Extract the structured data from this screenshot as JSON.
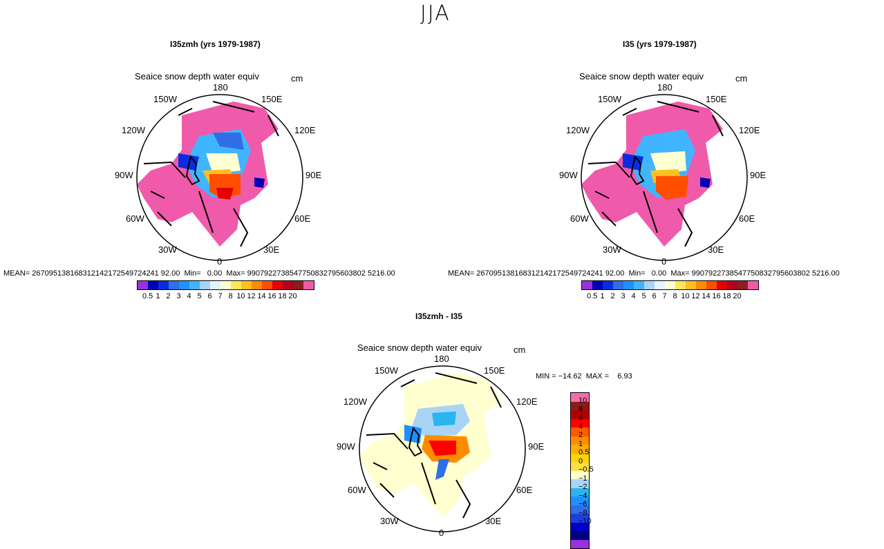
{
  "title": "JJA",
  "palette_main": [
    "#9b30e0",
    "#0000b4",
    "#0a2ce0",
    "#2f6ee6",
    "#1e90ff",
    "#41b4ff",
    "#a7d4ff",
    "#e0f5ff",
    "#ffffd4",
    "#ffe65a",
    "#ffc020",
    "#ff8c00",
    "#ff4e00",
    "#e60000",
    "#b4001e",
    "#8b1e1e",
    "#f05aaa"
  ],
  "palette_diff": [
    "#9b30e0",
    "#00007f",
    "#0000c8",
    "#1e3fe0",
    "#2f6ee6",
    "#1e90ff",
    "#2ab4f0",
    "#aad4f5",
    "#ffffd0",
    "#ffe040",
    "#ffd400",
    "#ffb000",
    "#ff8c00",
    "#ff5a00",
    "#ff0000",
    "#b40000",
    "#8b1a1a",
    "#f06eaa"
  ],
  "panels": [
    {
      "id": "left",
      "title": "I35zmh (yrs 1979-1987)",
      "variable": "Seaice snow depth water equiv",
      "units": "cm",
      "lon_labels": {
        "n": "180",
        "nw1": "150W",
        "ne1": "150E",
        "nw2": "120W",
        "ne2": "120E",
        "w": "90W",
        "e": "90E",
        "sw2": "60W",
        "se2": "60E",
        "sw1": "30W",
        "se1": "30E",
        "s": "0"
      },
      "stats": "MEAN= 267095138168312142172549724241 92.00  Min=   0.00  Max= 9907922738547750832795603802 5216.00"
    },
    {
      "id": "right",
      "title": "I35 (yrs 1979-1987)",
      "variable": "Seaice snow depth water equiv",
      "units": "cm",
      "lon_labels": {
        "n": "180",
        "nw1": "150W",
        "ne1": "150E",
        "nw2": "120W",
        "ne2": "120E",
        "w": "90W",
        "e": "90E",
        "sw2": "60W",
        "se2": "60E",
        "sw1": "30W",
        "se1": "30E",
        "s": "0"
      },
      "stats": "MEAN= 267095138168312142172549724241 92.00  Min=   0.00  Max= 9907922738547750832795603802 5216.00"
    },
    {
      "id": "diff",
      "title": "I35zmh - I35",
      "variable": "Seaice snow depth water equiv",
      "units": "cm",
      "lon_labels": {
        "n": "180",
        "nw1": "150W",
        "ne1": "150E",
        "nw2": "120W",
        "ne2": "120E",
        "w": "90W",
        "e": "90E",
        "sw2": "60W",
        "se2": "60E",
        "sw1": "30W",
        "se1": "30E",
        "s": "0"
      },
      "minmax": "MIN = −14.62  MAX =    6.93"
    }
  ],
  "colorbar_main": {
    "levels": [
      "0.5",
      "1",
      "2",
      "3",
      "4",
      "5",
      "6",
      "7",
      "8",
      "10",
      "12",
      "14",
      "16",
      "18",
      "20"
    ]
  },
  "colorbar_diff": {
    "levels": [
      "10",
      "8",
      "6",
      "4",
      "2",
      "1",
      "0.5",
      "0",
      "−0.5",
      "−1",
      "−2",
      "−4",
      "−6",
      "−8",
      "−10"
    ]
  }
}
